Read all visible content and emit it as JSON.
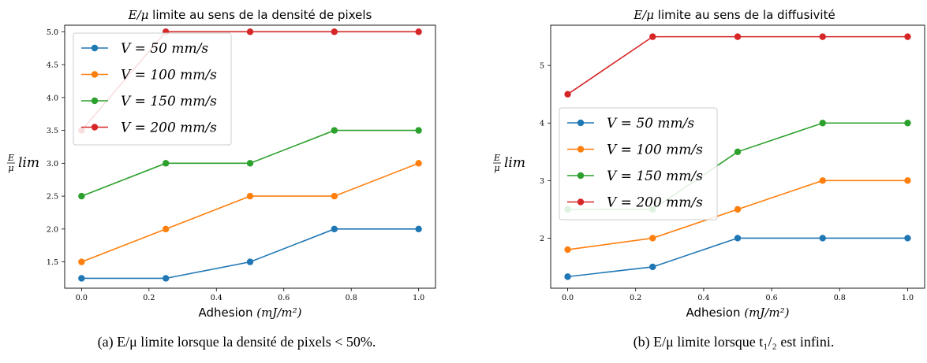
{
  "chart_data": [
    {
      "type": "line",
      "title": "E/μ limite au sens de la densité de pixels",
      "title_math": "E/μ",
      "title_text": " limite au sens de la densité de pixels",
      "xlabel": "Adhesion",
      "xlabel_unit": "(mJ/m²)",
      "ylabel": "E/μ lim",
      "x": [
        0.0,
        0.25,
        0.5,
        0.75,
        1.0
      ],
      "xticks": [
        "0.0",
        "0.2",
        "0.4",
        "0.6",
        "0.8",
        "1.0"
      ],
      "yticks": [
        "1.5",
        "2.0",
        "2.5",
        "3.0",
        "3.5",
        "4.0",
        "4.5",
        "5.0"
      ],
      "xlim": [
        -0.05,
        1.05
      ],
      "ylim": [
        1.1,
        5.1
      ],
      "grid": false,
      "legend_position": "top-left",
      "caption": "(a) E/μ limite lorsque la densité de pixels < 50%.",
      "series": [
        {
          "name": "V = 50 mm/s",
          "color": "#1f77b4",
          "values": [
            1.25,
            1.25,
            1.5,
            2.0,
            2.0
          ]
        },
        {
          "name": "V = 100 mm/s",
          "color": "#ff7f0e",
          "values": [
            1.5,
            2.0,
            2.5,
            2.5,
            3.0
          ]
        },
        {
          "name": "V = 150 mm/s",
          "color": "#2ca02c",
          "values": [
            2.5,
            3.0,
            3.0,
            3.5,
            3.5
          ]
        },
        {
          "name": "V = 200 mm/s",
          "color": "#d62728",
          "values": [
            3.5,
            5.0,
            5.0,
            5.0,
            5.0
          ]
        }
      ]
    },
    {
      "type": "line",
      "title": "E/μ limite au sens de la diffusivité",
      "title_math": "E/μ",
      "title_text": " limite au sens de la diffusivité",
      "xlabel": "Adhesion",
      "xlabel_unit": "(mJ/m²)",
      "ylabel": "E/μ lim",
      "x": [
        0.0,
        0.25,
        0.5,
        0.75,
        1.0
      ],
      "xticks": [
        "0.0",
        "0.2",
        "0.4",
        "0.6",
        "0.8",
        "1.0"
      ],
      "yticks": [
        "2",
        "3",
        "4",
        "5"
      ],
      "xlim": [
        -0.05,
        1.05
      ],
      "ylim": [
        1.13,
        5.7
      ],
      "grid": false,
      "legend_position": "center-left",
      "caption": "(b) E/μ limite lorsque t₁/₂ est infini.",
      "series": [
        {
          "name": "V = 50 mm/s",
          "color": "#1f77b4",
          "values": [
            1.33,
            1.5,
            2.0,
            2.0,
            2.0
          ]
        },
        {
          "name": "V = 100 mm/s",
          "color": "#ff7f0e",
          "values": [
            1.8,
            2.0,
            2.5,
            3.0,
            3.0
          ]
        },
        {
          "name": "V = 150 mm/s",
          "color": "#2ca02c",
          "values": [
            2.5,
            2.5,
            3.5,
            4.0,
            4.0
          ]
        },
        {
          "name": "V = 200 mm/s",
          "color": "#d62728",
          "values": [
            4.5,
            5.5,
            5.5,
            5.5,
            5.5
          ]
        }
      ]
    }
  ]
}
